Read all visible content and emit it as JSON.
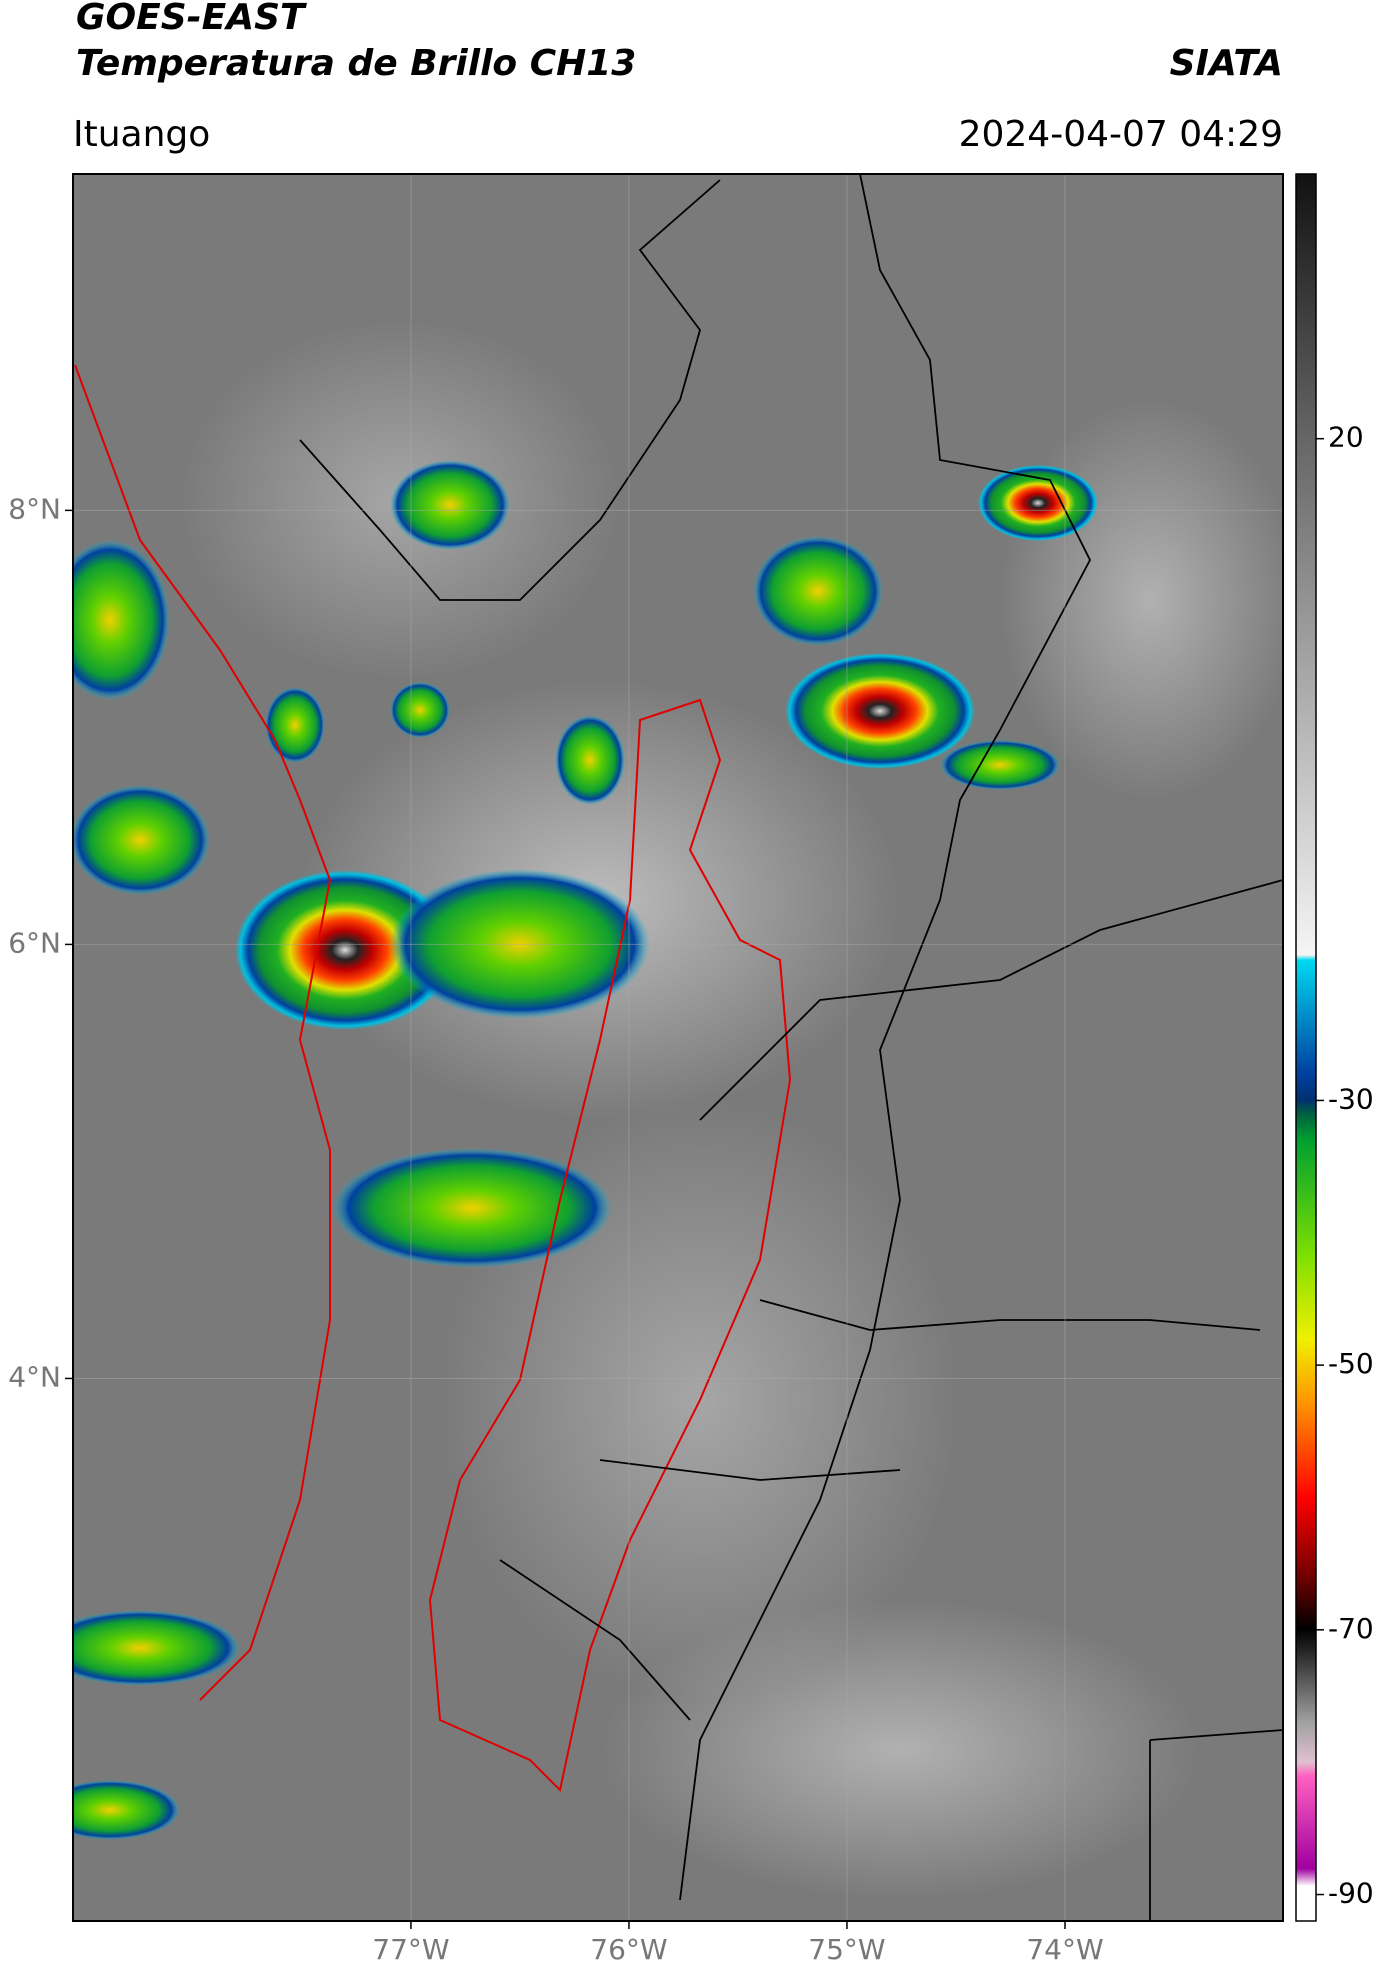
{
  "header": {
    "title": "GOES-EAST",
    "subtitle": "Temperatura de Brillo CH13",
    "source": "SIATA",
    "location": "Ituango",
    "timestamp": "2024-04-07 04:29"
  },
  "map": {
    "xlim": [
      -78.55,
      -73.0
    ],
    "ylim": [
      1.5,
      9.55
    ],
    "grid": true,
    "xticks": [
      {
        "value": -77,
        "label": "77°W"
      },
      {
        "value": -76,
        "label": "76°W"
      },
      {
        "value": -75,
        "label": "75°W"
      },
      {
        "value": -74,
        "label": "74°W"
      }
    ],
    "yticks": [
      {
        "value": 8,
        "label": "8°N"
      },
      {
        "value": 6,
        "label": "6°N"
      },
      {
        "value": 4,
        "label": "4°N"
      }
    ]
  },
  "colorbar": {
    "lim": [
      -92,
      40
    ],
    "ticks": [
      20,
      -30,
      -50,
      -70,
      -90
    ]
  }
}
